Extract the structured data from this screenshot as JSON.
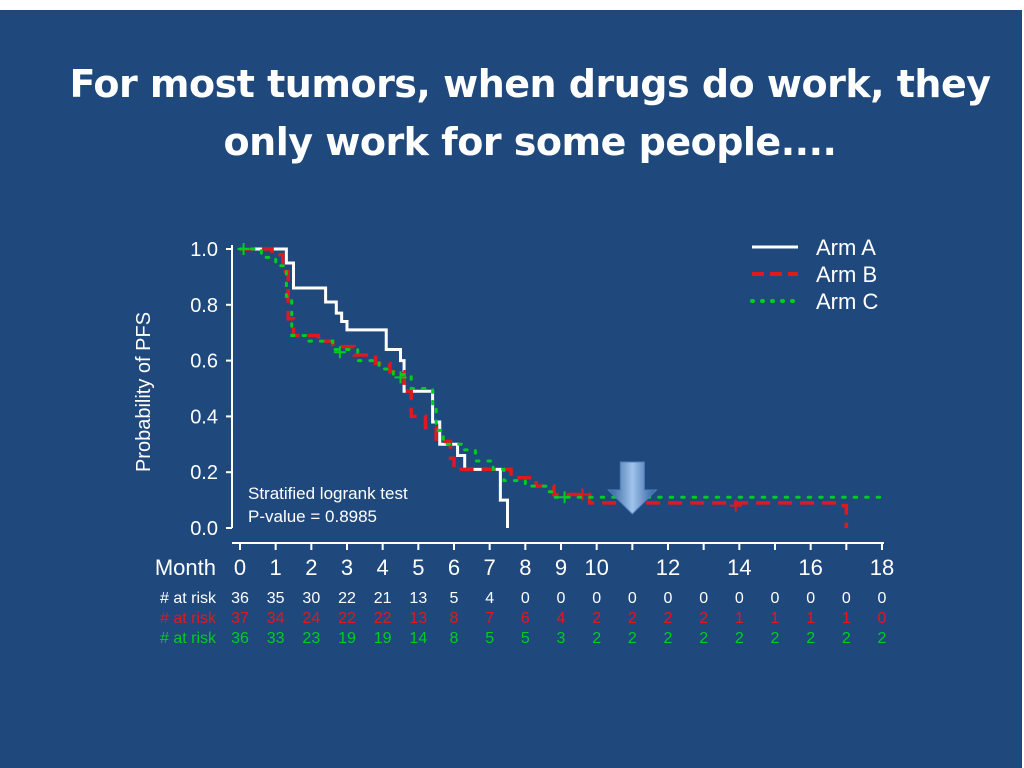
{
  "slide": {
    "title_line1": "For most tumors, when drugs do work, they",
    "title_line2": "only work for some people....",
    "background": "#1f497d"
  },
  "chart_data": {
    "type": "line",
    "subtype": "kaplan-meier step curves",
    "ylabel": "Probability of PFS",
    "xlabel": "Month",
    "xlim": [
      0,
      18
    ],
    "ylim": [
      0,
      1.0
    ],
    "x_ticks": [
      0,
      1,
      2,
      3,
      4,
      5,
      6,
      7,
      8,
      9,
      10,
      12,
      14,
      16,
      18
    ],
    "x_minor_ticks": [
      11,
      13,
      15,
      17
    ],
    "y_ticks": [
      "0.0",
      "0.2",
      "0.4",
      "0.6",
      "0.8",
      "1.0"
    ],
    "grid": false,
    "legend_position": "top-right",
    "annotation_line1": "Stratified logrank test",
    "annotation_line2": "P-value = 0.8985",
    "arrow_annotation": {
      "x": 11,
      "color": "#4f81bd",
      "icon": "down-arrow-icon"
    },
    "series": [
      {
        "name": "Arm A",
        "color": "#ffffff",
        "dash": "solid",
        "steps": [
          [
            0,
            1.0
          ],
          [
            1.3,
            0.95
          ],
          [
            1.5,
            0.86
          ],
          [
            2.4,
            0.81
          ],
          [
            2.7,
            0.77
          ],
          [
            2.85,
            0.74
          ],
          [
            3.0,
            0.71
          ],
          [
            4.1,
            0.64
          ],
          [
            4.5,
            0.6
          ],
          [
            4.6,
            0.49
          ],
          [
            5.4,
            0.38
          ],
          [
            5.6,
            0.3
          ],
          [
            6.1,
            0.26
          ],
          [
            6.3,
            0.21
          ],
          [
            7.3,
            0.1
          ],
          [
            7.5,
            0.0
          ]
        ],
        "censor": []
      },
      {
        "name": "Arm B",
        "color": "#e0191e",
        "dash": "dashed",
        "steps": [
          [
            0,
            1.0
          ],
          [
            0.9,
            0.98
          ],
          [
            1.2,
            0.92
          ],
          [
            1.35,
            0.75
          ],
          [
            1.5,
            0.69
          ],
          [
            2.2,
            0.67
          ],
          [
            2.6,
            0.65
          ],
          [
            3.2,
            0.62
          ],
          [
            3.8,
            0.59
          ],
          [
            4.2,
            0.56
          ],
          [
            4.6,
            0.49
          ],
          [
            4.8,
            0.4
          ],
          [
            5.2,
            0.36
          ],
          [
            5.5,
            0.31
          ],
          [
            5.9,
            0.25
          ],
          [
            6.0,
            0.21
          ],
          [
            6.9,
            0.21
          ],
          [
            7.6,
            0.18
          ],
          [
            8.3,
            0.15
          ],
          [
            8.8,
            0.12
          ],
          [
            9.8,
            0.09
          ],
          [
            16.8,
            0.08
          ],
          [
            17.0,
            0.0
          ]
        ],
        "censor": [
          [
            9.6,
            0.12
          ],
          [
            13.9,
            0.08
          ]
        ]
      },
      {
        "name": "Arm C",
        "color": "#00cc22",
        "dash": "dotted",
        "steps": [
          [
            0,
            1.0
          ],
          [
            0.6,
            0.97
          ],
          [
            1.0,
            0.94
          ],
          [
            1.3,
            0.83
          ],
          [
            1.45,
            0.69
          ],
          [
            1.9,
            0.67
          ],
          [
            2.6,
            0.64
          ],
          [
            3.3,
            0.6
          ],
          [
            3.9,
            0.57
          ],
          [
            4.3,
            0.55
          ],
          [
            4.8,
            0.5
          ],
          [
            5.4,
            0.43
          ],
          [
            5.5,
            0.35
          ],
          [
            5.7,
            0.3
          ],
          [
            6.2,
            0.28
          ],
          [
            6.6,
            0.24
          ],
          [
            7.1,
            0.21
          ],
          [
            7.4,
            0.17
          ],
          [
            8.0,
            0.15
          ],
          [
            8.6,
            0.13
          ],
          [
            8.8,
            0.11
          ],
          [
            18.0,
            0.11
          ]
        ],
        "censor": [
          [
            0.1,
            1.0
          ],
          [
            2.8,
            0.63
          ],
          [
            4.5,
            0.54
          ],
          [
            9.1,
            0.11
          ]
        ]
      }
    ],
    "at_risk": {
      "label": "# at risk",
      "months": [
        0,
        1,
        2,
        3,
        4,
        5,
        6,
        7,
        8,
        9,
        10,
        11,
        12,
        13,
        14,
        15,
        16,
        17,
        18
      ],
      "rows": [
        {
          "series": "Arm A",
          "color": "#ffffff",
          "values": [
            "36",
            "35",
            "30",
            "22",
            "21",
            "13",
            "5",
            "4",
            "0",
            "0",
            "0",
            "0",
            "0",
            "0",
            "0",
            "0",
            "0",
            "0",
            "0"
          ]
        },
        {
          "series": "Arm B",
          "color": "#e0191e",
          "values": [
            "37",
            "34",
            "24",
            "22",
            "22",
            "13",
            "8",
            "7",
            "6",
            "4",
            "2",
            "2",
            "2",
            "2",
            "1",
            "1",
            "1",
            "1",
            "0"
          ]
        },
        {
          "series": "Arm C",
          "color": "#00cc22",
          "values": [
            "36",
            "33",
            "23",
            "19",
            "19",
            "14",
            "8",
            "5",
            "5",
            "3",
            "2",
            "2",
            "2",
            "2",
            "2",
            "2",
            "2",
            "2",
            "2"
          ]
        }
      ]
    }
  }
}
